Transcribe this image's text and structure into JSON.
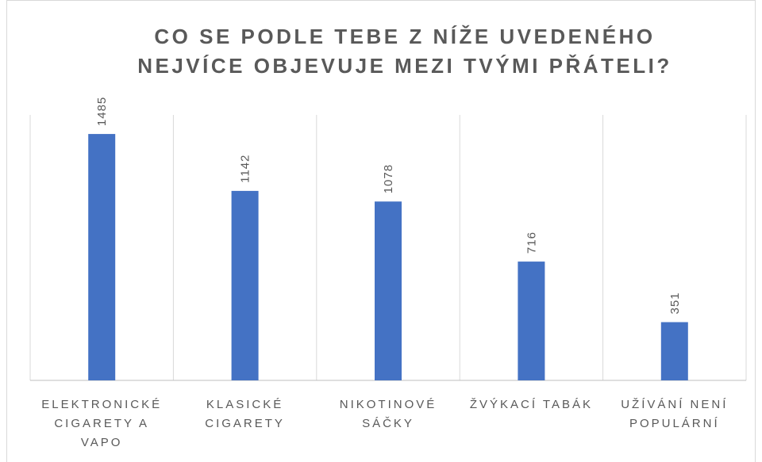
{
  "chart_data": {
    "type": "bar",
    "title": [
      "CO SE PODLE TEBE Z NÍŽE UVEDENÉHO",
      "NEJVÍCE OBJEVUJE MEZI TVÝMI PŘÁTELI?"
    ],
    "categories": [
      "ELEKTRONICKÉ CIGARETY A VAPO",
      "KLASICKÉ CIGARETY",
      "NIKOTINOVÉ SÁČKY",
      "ŽVÝKACÍ TABÁK",
      "UŽÍVÁNÍ NENÍ POPULÁRNÍ"
    ],
    "values": [
      1485,
      1142,
      1078,
      716,
      351
    ],
    "color": "#4472c4",
    "ylim": [
      0,
      1600
    ]
  }
}
